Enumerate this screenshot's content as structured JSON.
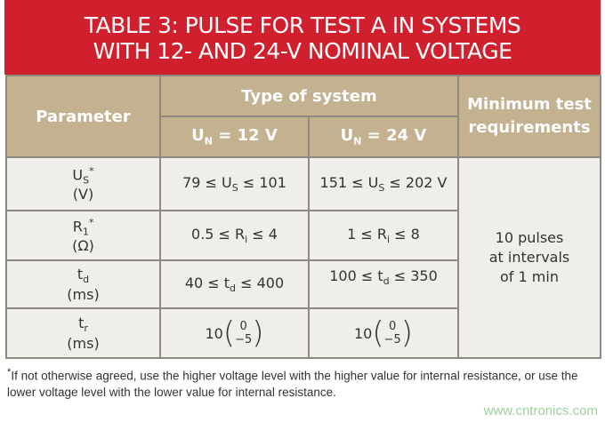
{
  "title": {
    "line1": "TABLE 3: PULSE FOR TEST A IN SYSTEMS",
    "line2": "WITH 12- AND 24-V NOMINAL VOLTAGE"
  },
  "header": {
    "parameter": "Parameter",
    "type_of_system": "Type of system",
    "minimum": "Minimum test requirements",
    "col12": {
      "sym": "U",
      "sub": "N",
      "rest": " = 12 V"
    },
    "col24": {
      "sym": "U",
      "sub": "N",
      "rest": " = 24 V"
    }
  },
  "rows": [
    {
      "p_sym": "U",
      "p_sub": "S",
      "p_sup": "*",
      "p_unit": "(V)",
      "c12": {
        "a": "79 ≤ U",
        "sub": "S",
        "b": " ≤ 101"
      },
      "c24": {
        "a": "151 ≤ U",
        "sub": "S",
        "b": " ≤ 202 V"
      }
    },
    {
      "p_sym": "R",
      "p_sub": "1",
      "p_sup": "*",
      "p_unit": "(Ω)",
      "c12": {
        "a": "0.5 ≤ R",
        "sub": "i",
        "b": " ≤ 4"
      },
      "c24": {
        "a": "1 ≤ R",
        "sub": "i",
        "b": " ≤ 8"
      }
    },
    {
      "p_sym": "t",
      "p_sub": "d",
      "p_unit": "(ms)",
      "c12": {
        "a": "40 ≤ t",
        "sub": "d",
        "b": " ≤ 400"
      },
      "c24": {
        "a": "100 ≤ t",
        "sub": "d",
        "b": " ≤ 350"
      }
    },
    {
      "p_sym": "t",
      "p_sub": "r",
      "p_unit": "(ms)",
      "c12": {
        "base": "10",
        "top": "0",
        "bottom": "−5"
      },
      "c24": {
        "base": "10",
        "top": "0",
        "bottom": "−5"
      }
    }
  ],
  "minimum_value": {
    "l1": "10 pulses",
    "l2": "at intervals",
    "l3": "of 1 min"
  },
  "footnote": {
    "mark": "*",
    "text": "If not otherwise agreed, use the higher voltage level with the higher value for internal resistance, or use the lower voltage level with the lower value for internal resistance."
  },
  "watermark": "www.cntronics.com"
}
